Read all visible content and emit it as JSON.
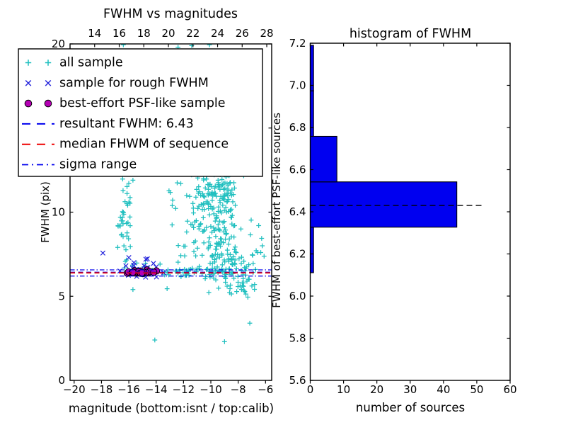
{
  "figure": {
    "background": "#ffffff"
  },
  "chart_data": [
    {
      "type": "scatter",
      "title": "FWHM vs magnitudes",
      "xlabel": "magnitude (bottom:isnt / top:calib)",
      "ylabel": "FWHM (pix)",
      "xlim": [
        -20.3,
        -5.55
      ],
      "ylim": [
        0,
        20
      ],
      "xticks": [
        -20,
        -18,
        -16,
        -14,
        -12,
        -10,
        -8,
        -6
      ],
      "yticks": [
        0,
        5,
        10,
        15,
        20
      ],
      "top_axis": {
        "lim": [
          12.0,
          28.4
        ],
        "ticks": [
          14,
          16,
          18,
          20,
          22,
          24,
          26,
          28
        ]
      },
      "grid": false,
      "series": [
        {
          "name": "all sample",
          "marker": "plus",
          "color": "#1fbfbf",
          "clusters": [
            {
              "shape": "gauss",
              "cx": -9.8,
              "cy": 9.6,
              "sx": 0.85,
              "sy": 1.5,
              "n": 150
            },
            {
              "shape": "gauss",
              "cx": -9.3,
              "cy": 11.6,
              "sx": 0.8,
              "sy": 0.8,
              "n": 60
            },
            {
              "shape": "gauss",
              "cx": -8.6,
              "cy": 7.1,
              "sx": 0.65,
              "sy": 0.85,
              "n": 70
            },
            {
              "shape": "gauss",
              "cx": -7.9,
              "cy": 5.9,
              "sx": 0.5,
              "sy": 0.65,
              "n": 25
            },
            {
              "shape": "uniform",
              "x0": -16.85,
              "x1": -15.85,
              "y0": 7.7,
              "y1": 12.2,
              "n": 26
            },
            {
              "shape": "gauss",
              "cx": -16.35,
              "cy": 9.6,
              "sx": 0.18,
              "sy": 0.3,
              "n": 12
            },
            {
              "shape": "band",
              "x0": -13.6,
              "x1": -8.6,
              "ymean": 6.45,
              "ysig": 0.17,
              "n": 45
            },
            {
              "shape": "band",
              "x0": -16.6,
              "x1": -13.7,
              "ymean": 6.6,
              "ysig": 0.28,
              "n": 10
            },
            {
              "shape": "uniform",
              "x0": -14.1,
              "x1": -11.2,
              "y0": 7.2,
              "y1": 11.9,
              "n": 14
            },
            {
              "shape": "uniform",
              "x0": -7.6,
              "x1": -6.1,
              "y0": 4.6,
              "y1": 9.3,
              "n": 12
            }
          ],
          "points": [
            [
              -16.4,
              19.95
            ],
            [
              -12.4,
              19.8
            ],
            [
              -11.4,
              19.9
            ],
            [
              -10.1,
              19.95
            ],
            [
              -14.1,
              2.4
            ],
            [
              -9.0,
              2.3
            ],
            [
              -7.15,
              3.4
            ],
            [
              -6.5,
              9.2
            ],
            [
              -6.35,
              7.6
            ],
            [
              -15.7,
              11.9
            ],
            [
              -12.2,
              11.7
            ],
            [
              -7.8,
              9.0
            ],
            [
              -15.7,
              5.4
            ],
            [
              -13.2,
              5.45
            ],
            [
              -7.57,
              5.35
            ],
            [
              -6.8,
              5.7
            ]
          ]
        },
        {
          "name": "sample for rough FWHM",
          "marker": "x",
          "color": "#2828dc",
          "clusters": [
            {
              "shape": "gauss",
              "cx": -15.2,
              "cy": 6.6,
              "sx": 0.62,
              "sy": 0.26,
              "n": 24,
              "clip": [
                -16.8,
                -13.3,
                6.0,
                7.45
              ]
            }
          ],
          "points": [
            [
              -17.9,
              7.57
            ],
            [
              -16.0,
              7.3
            ],
            [
              -14.75,
              7.2
            ],
            [
              -14.2,
              6.95
            ],
            [
              -16.65,
              6.5
            ],
            [
              -13.45,
              6.4
            ]
          ]
        },
        {
          "name": "best-effort PSF-like sample",
          "marker": "circle",
          "color": "#b400b4",
          "edge_color": "#000000",
          "clusters": [
            {
              "shape": "gauss",
              "cx": -15.05,
              "cy": 6.43,
              "sx": 0.58,
              "sy": 0.055,
              "n": 24,
              "clip": [
                -16.55,
                -13.72,
                6.31,
                6.56
              ]
            }
          ],
          "points": []
        }
      ],
      "hlines": [
        {
          "label": "resultant FWHM: 6.43",
          "y": 6.43,
          "color": "#0000ee",
          "style": "dashed",
          "width": 1.3
        },
        {
          "label": "median FHWM of sequence",
          "y": 6.39,
          "color": "#ee0000",
          "style": "dashed",
          "width": 1.8
        },
        {
          "label": "sigma range",
          "y": 6.57,
          "color": "#0000ee",
          "style": "dashdot",
          "width": 1.2
        },
        {
          "label": "sigma range",
          "y": 6.2,
          "color": "#0000ee",
          "style": "dashdot",
          "width": 1.2
        }
      ],
      "legend": {
        "position": "upper left",
        "entries": [
          {
            "label": "all sample",
            "marker": "plus",
            "color": "#1fbfbf"
          },
          {
            "label": "sample for rough FWHM",
            "marker": "x",
            "color": "#2828dc"
          },
          {
            "label": "best-effort PSF-like sample",
            "marker": "circle",
            "color": "#b400b4",
            "edge_color": "#000000"
          },
          {
            "label": "resultant FWHM: 6.43",
            "marker": "dashed-line",
            "color": "#0000ee"
          },
          {
            "label": "median FHWM of sequence",
            "marker": "dashed-line",
            "color": "#ee0000"
          },
          {
            "label": "sigma range",
            "marker": "dashdot-line",
            "color": "#0000ee"
          }
        ]
      }
    },
    {
      "type": "bar",
      "orientation": "horizontal",
      "title": "histogram of FWHM",
      "xlabel": "number of sources",
      "ylabel": "FWHM of best-effort PSF-like sources",
      "xlim": [
        0,
        60
      ],
      "ylim": [
        5.6,
        7.2
      ],
      "xticks": [
        0,
        10,
        20,
        30,
        40,
        50,
        60
      ],
      "yticks": [
        5.6,
        5.8,
        6.0,
        6.2,
        6.4,
        6.6,
        6.8,
        7.0,
        7.2
      ],
      "grid": false,
      "bar_color": "#0000f0",
      "bar_edge_color": "#000000",
      "bin_edges": [
        6.111,
        6.327,
        6.542,
        6.758,
        6.974,
        7.19
      ],
      "counts": [
        1,
        44,
        8,
        1,
        1
      ],
      "dashed_line": {
        "y": 6.43,
        "x_start": 0,
        "x_end": 51.7,
        "color": "#000000",
        "style": "dashed"
      }
    }
  ]
}
